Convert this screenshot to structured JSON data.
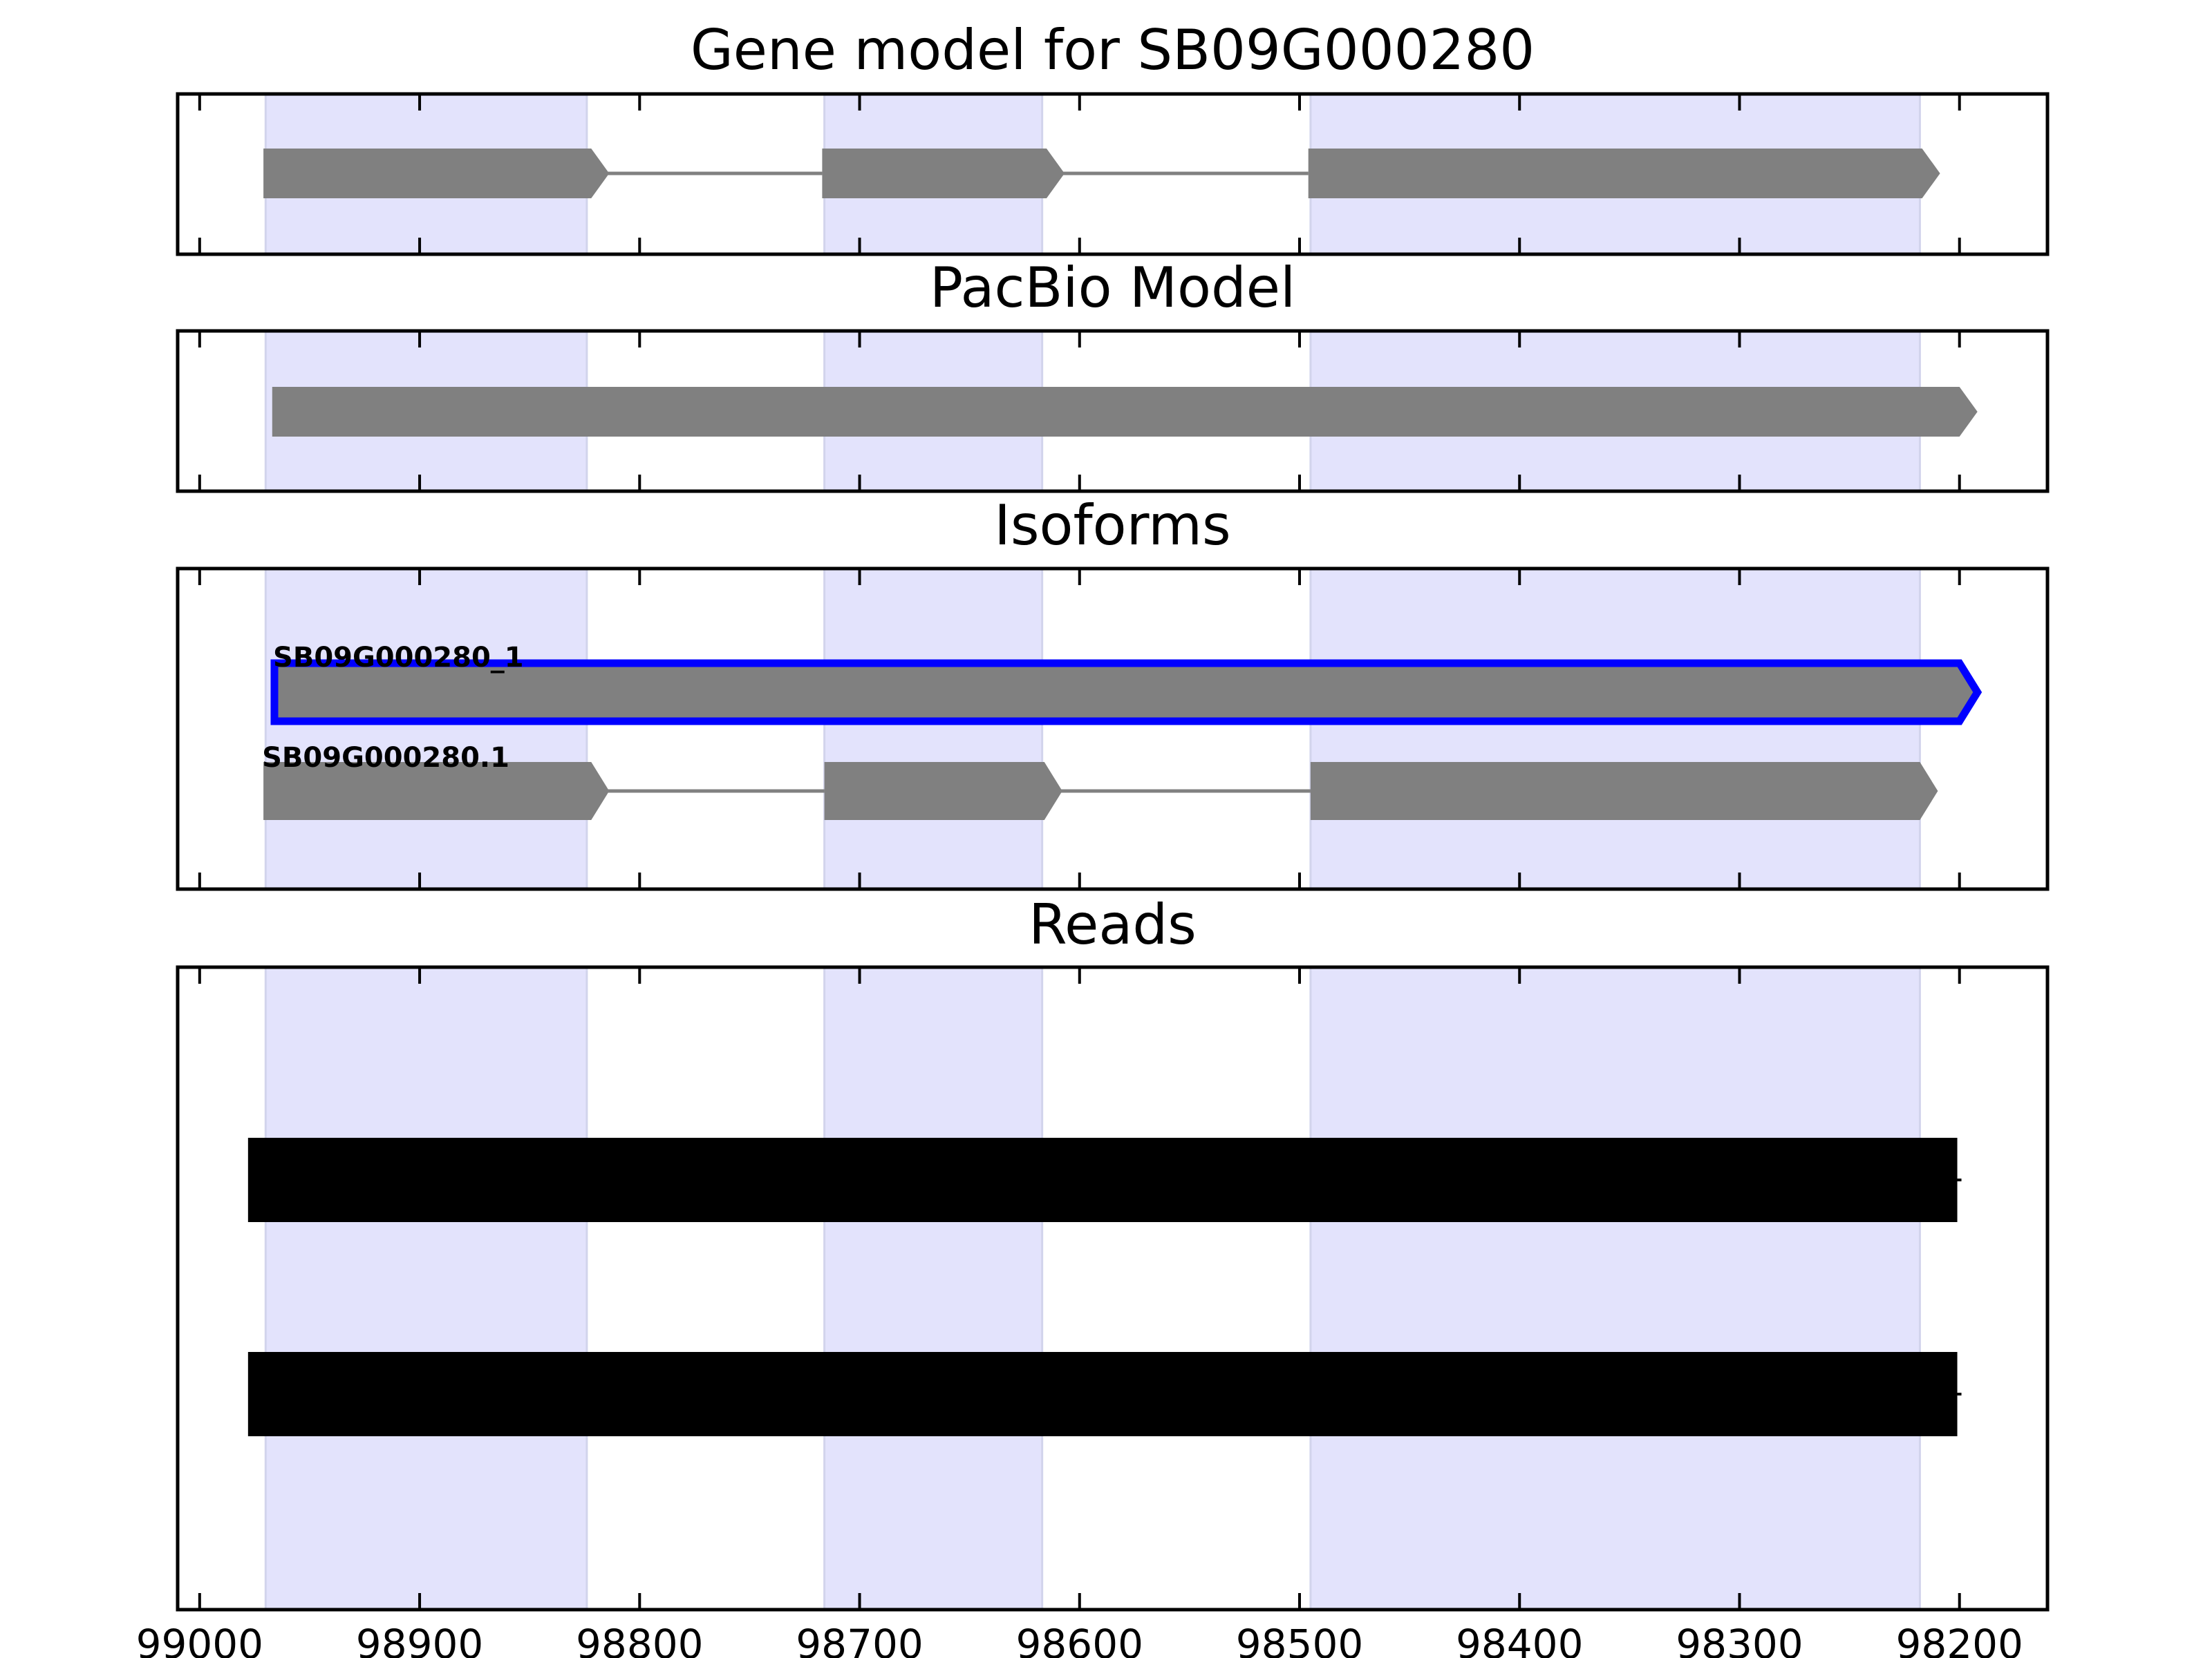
{
  "chart_data": [
    {
      "type": "gene-track",
      "title": "Gene model for SB09G000280",
      "x_reversed": true,
      "xlim": [
        99010,
        98160
      ],
      "exon_highlights": [
        [
          98970,
          98824
        ],
        [
          98716,
          98617
        ],
        [
          98495,
          98218
        ]
      ],
      "features": [
        {
          "type": "gene_model",
          "exons": [
            [
              98971,
              98822
            ],
            [
              98717,
              98615
            ],
            [
              98496,
              98217
            ]
          ]
        }
      ]
    },
    {
      "type": "gene-track",
      "title": "PacBio Model",
      "x_reversed": true,
      "xlim": [
        99010,
        98160
      ],
      "exon_highlights": [
        [
          98970,
          98824
        ],
        [
          98716,
          98617
        ],
        [
          98495,
          98218
        ]
      ],
      "features": [
        {
          "type": "gene_model",
          "exons": [
            [
              98967,
              98200
            ]
          ]
        }
      ]
    },
    {
      "type": "gene-track",
      "title": "Isoforms",
      "x_reversed": true,
      "xlim": [
        99010,
        98160
      ],
      "exon_highlights": [
        [
          98970,
          98824
        ],
        [
          98716,
          98617
        ],
        [
          98495,
          98218
        ]
      ],
      "features": [
        {
          "type": "isoform",
          "name": "SB09G000280_1",
          "highlighted": true,
          "exons": [
            [
              98966,
              98200
            ]
          ]
        },
        {
          "type": "isoform",
          "name": "SB09G000280.1",
          "highlighted": false,
          "exons": [
            [
              98971,
              98822
            ],
            [
              98716,
              98616
            ],
            [
              98495,
              98218
            ]
          ]
        }
      ]
    },
    {
      "type": "gene-track",
      "title": "Reads",
      "x_reversed": true,
      "xlim": [
        99010,
        98160
      ],
      "xticks": [
        "99000",
        "98900",
        "98800",
        "98700",
        "98600",
        "98500",
        "98400",
        "98300",
        "98200"
      ],
      "exon_highlights": [
        [
          98970,
          98824
        ],
        [
          98716,
          98617
        ],
        [
          98495,
          98218
        ]
      ],
      "features": [
        {
          "type": "read",
          "start": 98978,
          "end": 98201
        },
        {
          "type": "read",
          "start": 98978,
          "end": 98201
        }
      ]
    }
  ],
  "colors": {
    "exon_fill": "#808080",
    "intron_line": "#808080",
    "highlight_band": "#e3e3fc",
    "highlight_edge": "#d2d4ec",
    "selected_outline": "#0000ff",
    "read_fill": "#000000",
    "frame": "#000000"
  }
}
